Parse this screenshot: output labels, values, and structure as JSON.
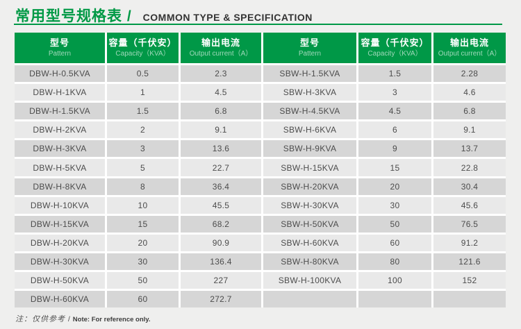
{
  "title": {
    "zh": "常用型号规格表 /",
    "en": "COMMON TYPE & SPECIFICATION"
  },
  "note": {
    "zh": "注：仅供参考",
    "slash": "/",
    "en": "Note: For reference only."
  },
  "colors": {
    "header_green": "#009847",
    "title_green": "#009945",
    "stripe_dark": "#d6d6d6",
    "stripe_light": "#e9e9e9",
    "page_bg": "#efefee",
    "cell_text": "#4c4c4c"
  },
  "table": {
    "headers": [
      {
        "zh": "型号",
        "en": "Pattern"
      },
      {
        "zh": "容量（千伏安）",
        "en": "Capacity（KVA）"
      },
      {
        "zh": "输出电流",
        "en": "Output current（A）"
      },
      {
        "zh": "型号",
        "en": "Pattern"
      },
      {
        "zh": "容量（千伏安）",
        "en": "Capacity（KVA）"
      },
      {
        "zh": "输出电流",
        "en": "Output current（A）"
      }
    ],
    "rows": [
      {
        "cells": [
          "DBW-H-0.5KVA",
          "0.5",
          "2.3",
          "SBW-H-1.5KVA",
          "1.5",
          "2.28"
        ]
      },
      {
        "cells": [
          "DBW-H-1KVA",
          "1",
          "4.5",
          "SBW-H-3KVA",
          "3",
          "4.6"
        ]
      },
      {
        "cells": [
          "DBW-H-1.5KVA",
          "1.5",
          "6.8",
          "SBW-H-4.5KVA",
          "4.5",
          "6.8"
        ]
      },
      {
        "cells": [
          "DBW-H-2KVA",
          "2",
          "9.1",
          "SBW-H-6KVA",
          "6",
          "9.1"
        ]
      },
      {
        "cells": [
          "DBW-H-3KVA",
          "3",
          "13.6",
          "SBW-H-9KVA",
          "9",
          "13.7"
        ]
      },
      {
        "cells": [
          "DBW-H-5KVA",
          "5",
          "22.7",
          "SBW-H-15KVA",
          "15",
          "22.8"
        ]
      },
      {
        "cells": [
          "DBW-H-8KVA",
          "8",
          "36.4",
          "SBW-H-20KVA",
          "20",
          "30.4"
        ]
      },
      {
        "cells": [
          "DBW-H-10KVA",
          "10",
          "45.5",
          "SBW-H-30KVA",
          "30",
          "45.6"
        ]
      },
      {
        "cells": [
          "DBW-H-15KVA",
          "15",
          "68.2",
          "SBW-H-50KVA",
          "50",
          "76.5"
        ]
      },
      {
        "cells": [
          "DBW-H-20KVA",
          "20",
          "90.9",
          "SBW-H-60KVA",
          "60",
          "91.2"
        ]
      },
      {
        "cells": [
          "DBW-H-30KVA",
          "30",
          "136.4",
          "SBW-H-80KVA",
          "80",
          "121.6"
        ]
      },
      {
        "cells": [
          "DBW-H-50KVA",
          "50",
          "227",
          "SBW-H-100KVA",
          "100",
          "152"
        ]
      },
      {
        "cells": [
          "DBW-H-60KVA",
          "60",
          "272.7",
          "",
          "",
          ""
        ]
      }
    ]
  }
}
